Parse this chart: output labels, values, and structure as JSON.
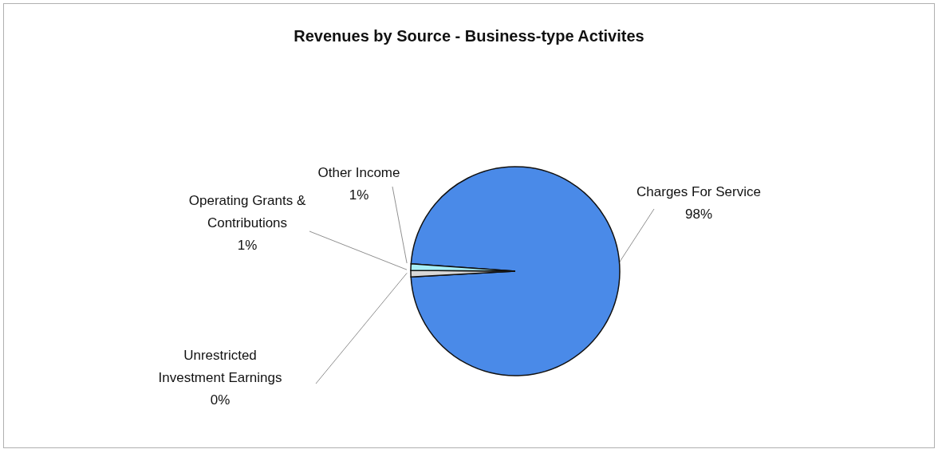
{
  "chart_data": {
    "type": "pie",
    "title": "Revenues by Source - Business-type Activites",
    "categories": [
      "Charges For Service",
      "Unrestricted Investment Earnings",
      "Operating Grants & Contributions",
      "Other Income"
    ],
    "values": [
      98,
      0,
      1,
      1
    ],
    "colors": [
      "#4a8ae8",
      "#1c1c1c",
      "#d8d8d8",
      "#a8f0f8"
    ],
    "value_labels": [
      "98%",
      "0%",
      "1%",
      "1%"
    ]
  }
}
